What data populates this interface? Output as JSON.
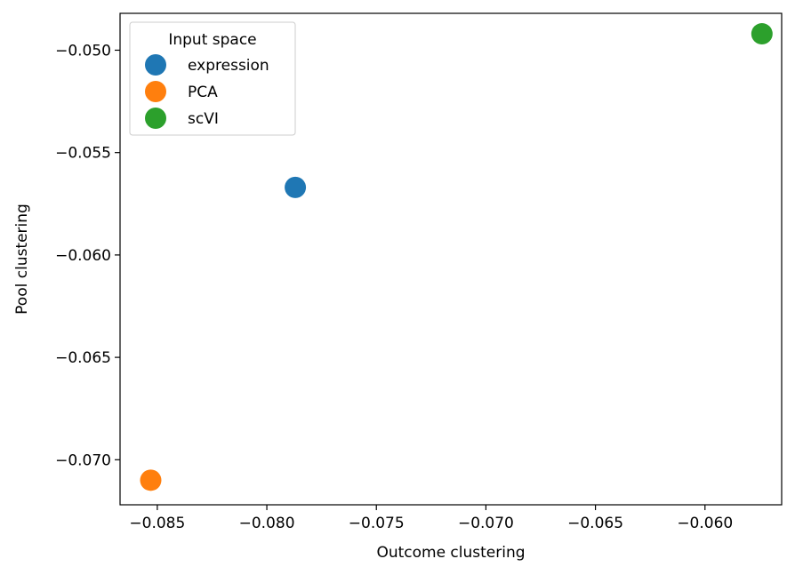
{
  "chart_data": {
    "type": "scatter",
    "title": "",
    "xlabel": "Outcome clustering",
    "ylabel": "Pool clustering",
    "xlim": [
      -0.0867,
      -0.0565
    ],
    "ylim": [
      -0.0722,
      -0.0482
    ],
    "xticks": [
      -0.085,
      -0.08,
      -0.075,
      -0.07,
      -0.065,
      -0.06
    ],
    "xtick_labels": [
      "−0.085",
      "−0.080",
      "−0.075",
      "−0.070",
      "−0.065",
      "−0.060"
    ],
    "yticks": [
      -0.05,
      -0.055,
      -0.06,
      -0.065,
      -0.07
    ],
    "ytick_labels": [
      "−0.050",
      "−0.055",
      "−0.060",
      "−0.065",
      "−0.070"
    ],
    "grid": false,
    "legend": {
      "title": "Input space",
      "placement": "top-left",
      "entries": [
        "expression",
        "PCA",
        "scVI"
      ]
    },
    "series": [
      {
        "name": "expression",
        "color": "#1f77b4",
        "x": [
          -0.0787
        ],
        "y": [
          -0.0567
        ]
      },
      {
        "name": "PCA",
        "color": "#ff7f0e",
        "x": [
          -0.0853
        ],
        "y": [
          -0.071
        ]
      },
      {
        "name": "scVI",
        "color": "#2ca02c",
        "x": [
          -0.0574
        ],
        "y": [
          -0.0492
        ]
      }
    ]
  }
}
